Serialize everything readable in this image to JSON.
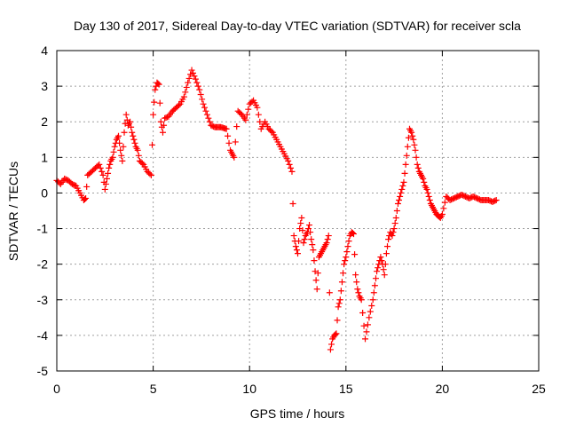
{
  "chart_data": {
    "type": "scatter",
    "title": "Day 130 of 2017, Sidereal Day-to-day VTEC variation (SDTVAR) for receiver scla",
    "xlabel": "GPS time / hours",
    "ylabel": "SDTVAR / TECUs",
    "xlim": [
      0,
      25
    ],
    "ylim": [
      -5,
      4
    ],
    "xticks": [
      "0",
      "5",
      "10",
      "15",
      "20",
      "25"
    ],
    "yticks": [
      "-5",
      "-4",
      "-3",
      "-2",
      "-1",
      "0",
      "1",
      "2",
      "3",
      "4"
    ],
    "grid": true,
    "marker": "+",
    "color": "#ff0000",
    "series": [
      {
        "name": "SDTVAR",
        "x": [
          0.0,
          0.2,
          0.4,
          0.6,
          0.8,
          1.0,
          1.2,
          1.4,
          1.5,
          1.6,
          1.8,
          2.0,
          2.2,
          2.4,
          2.5,
          2.6,
          2.7,
          2.8,
          2.9,
          3.0,
          3.1,
          3.2,
          3.3,
          3.4,
          3.5,
          3.6,
          3.7,
          3.8,
          3.9,
          4.0,
          4.1,
          4.2,
          4.3,
          4.5,
          4.7,
          4.9,
          5.0,
          5.1,
          5.2,
          5.3,
          5.4,
          5.5,
          5.6,
          5.8,
          6.0,
          6.2,
          6.4,
          6.6,
          6.8,
          7.0,
          7.2,
          7.4,
          7.6,
          7.8,
          8.0,
          8.2,
          8.5,
          8.8,
          9.0,
          9.1,
          9.2,
          9.4,
          9.6,
          9.8,
          10.0,
          10.2,
          10.4,
          10.6,
          10.8,
          11.0,
          11.2,
          11.4,
          11.6,
          11.8,
          12.0,
          12.2,
          12.3,
          12.4,
          12.5,
          12.6,
          12.7,
          12.8,
          12.9,
          13.0,
          13.1,
          13.2,
          13.3,
          13.4,
          13.5,
          13.6,
          13.7,
          13.8,
          13.9,
          14.0,
          14.1,
          14.2,
          14.3,
          14.4,
          14.5,
          14.6,
          14.7,
          14.8,
          14.9,
          15.0,
          15.1,
          15.2,
          15.3,
          15.4,
          15.5,
          15.6,
          15.7,
          15.8,
          16.0,
          16.2,
          16.4,
          16.5,
          16.6,
          16.7,
          16.8,
          16.9,
          17.0,
          17.1,
          17.2,
          17.3,
          17.4,
          17.5,
          17.6,
          17.7,
          17.8,
          17.9,
          18.0,
          18.1,
          18.2,
          18.3,
          18.4,
          18.5,
          18.6,
          18.7,
          18.8,
          18.9,
          19.0,
          19.1,
          19.2,
          19.3,
          19.4,
          19.5,
          19.6,
          19.7,
          19.8,
          19.9,
          20.0,
          20.2,
          20.4,
          20.6,
          20.8,
          21.0,
          21.2,
          21.4,
          21.6,
          21.8,
          22.0,
          22.2,
          22.4,
          22.6,
          22.8
        ],
        "y": [
          0.35,
          0.25,
          0.4,
          0.35,
          0.25,
          0.2,
          0.0,
          -0.2,
          -0.15,
          0.5,
          0.6,
          0.7,
          0.8,
          0.5,
          0.1,
          0.4,
          0.7,
          0.9,
          1.0,
          1.3,
          1.5,
          1.6,
          1.2,
          0.9,
          1.7,
          2.2,
          1.9,
          2.0,
          1.7,
          1.5,
          1.3,
          1.2,
          0.9,
          0.8,
          0.6,
          0.5,
          2.2,
          2.9,
          3.1,
          3.05,
          2.0,
          1.7,
          2.1,
          2.15,
          2.3,
          2.4,
          2.5,
          2.7,
          3.1,
          3.45,
          3.2,
          2.9,
          2.5,
          2.2,
          1.9,
          1.85,
          1.85,
          1.8,
          1.2,
          1.1,
          1.0,
          2.3,
          2.2,
          2.05,
          2.5,
          2.6,
          2.4,
          1.8,
          2.0,
          1.8,
          1.7,
          1.5,
          1.3,
          1.1,
          0.9,
          0.6,
          -1.2,
          -1.5,
          -1.7,
          -1.0,
          -0.7,
          -1.4,
          -1.2,
          -1.1,
          -0.9,
          -1.3,
          -1.6,
          -2.2,
          -2.7,
          -1.8,
          -1.7,
          -1.6,
          -1.5,
          -1.4,
          -1.2,
          -4.4,
          -4.1,
          -4.0,
          -3.95,
          -3.2,
          -3.0,
          -2.5,
          -2.0,
          -1.8,
          -1.5,
          -1.2,
          -1.1,
          -1.15,
          -2.3,
          -2.7,
          -2.9,
          -3.0,
          -4.1,
          -3.5,
          -3.0,
          -2.6,
          -2.2,
          -2.0,
          -1.8,
          -2.0,
          -2.3,
          -1.7,
          -1.3,
          -1.1,
          -1.2,
          -1.0,
          -0.7,
          -0.3,
          -0.1,
          0.1,
          0.3,
          0.8,
          1.3,
          1.8,
          1.7,
          1.5,
          1.2,
          0.8,
          0.6,
          0.5,
          0.4,
          0.2,
          0.1,
          -0.1,
          -0.3,
          -0.4,
          -0.5,
          -0.6,
          -0.65,
          -0.7,
          -0.6,
          -0.1,
          -0.2,
          -0.15,
          -0.1,
          -0.05,
          -0.1,
          -0.15,
          -0.1,
          -0.15,
          -0.2,
          -0.2,
          -0.2,
          -0.25,
          -0.2
        ]
      }
    ]
  }
}
